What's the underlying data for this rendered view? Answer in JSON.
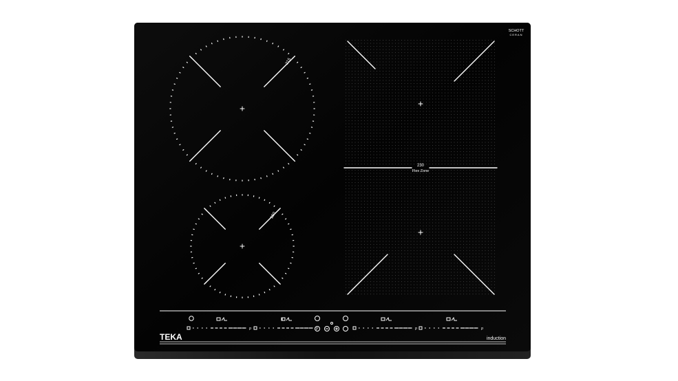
{
  "brand_badge": {
    "line1": "SCHOTT",
    "line2": "CERAN"
  },
  "zones": [
    {
      "id": "front-left-large",
      "size_label": "215"
    },
    {
      "id": "rear-left-small",
      "size_label": "180"
    },
    {
      "id": "flex",
      "size_label": "230",
      "name": "Flex Zone"
    }
  ],
  "controls": {
    "power_icon": "power-icon",
    "slider_end_label": "P",
    "slider_count": 4,
    "center_buttons": [
      "lock-icon",
      "minus-icon",
      "plus-icon",
      "timer-icon"
    ]
  },
  "brand": "TEKA",
  "type_label": "induction",
  "colors": {
    "glass": "#050505",
    "print": "#ffffff",
    "background": "#ffffff"
  }
}
